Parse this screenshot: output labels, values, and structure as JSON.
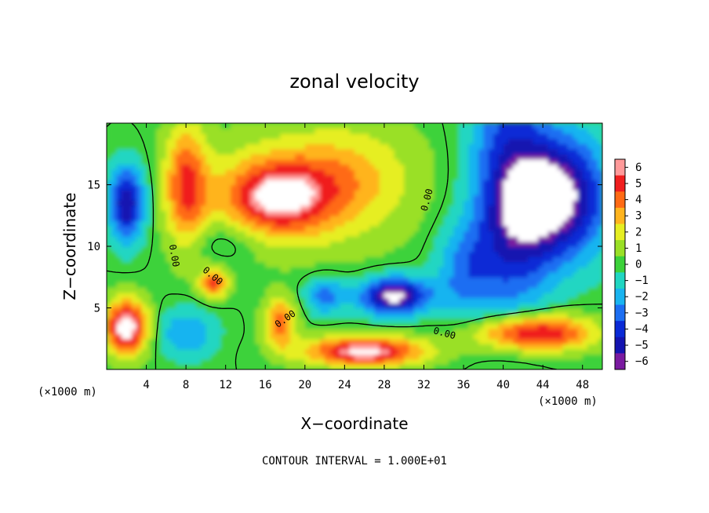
{
  "chart_data": {
    "type": "heatmap",
    "title": "zonal velocity",
    "xlabel": "X−coordinate",
    "ylabel": "Z−coordinate",
    "x_unit_label": "(×1000 m)",
    "z_unit_label": "(×1000 m)",
    "xlim": [
      0,
      50
    ],
    "ylim": [
      0,
      20
    ],
    "x_ticks": [
      4,
      8,
      12,
      16,
      20,
      24,
      28,
      32,
      36,
      40,
      44,
      48
    ],
    "x_tick_labels": [
      "4",
      "8",
      "12",
      "16",
      "20",
      "24",
      "28",
      "32",
      "36",
      "40",
      "44",
      "48"
    ],
    "y_ticks": [
      5,
      10,
      15
    ],
    "y_tick_labels": [
      "5",
      "10",
      "15"
    ],
    "colorbar": {
      "min": -6,
      "max": 6,
      "tick_values": [
        6,
        5,
        4,
        3,
        2,
        1,
        0,
        -1,
        -2,
        -3,
        -4,
        -5,
        -6
      ],
      "tick_labels": [
        "6",
        "5",
        "4",
        "3",
        "2",
        "1",
        "0",
        "−1",
        "−2",
        "−3",
        "−4",
        "−5",
        "−6"
      ]
    },
    "contour_label": "0.00",
    "contour_labels": [
      {
        "text": "0.00",
        "x": 6.5,
        "y": 9.2,
        "angle": 80
      },
      {
        "text": "0.00",
        "x": 10.5,
        "y": 7.4,
        "angle": 40
      },
      {
        "text": "0.00",
        "x": 18.2,
        "y": 3.9,
        "angle": -35
      },
      {
        "text": "0.00",
        "x": 32.6,
        "y": 13.7,
        "angle": -75
      },
      {
        "text": "0.00",
        "x": 34.0,
        "y": 2.7,
        "angle": 15
      }
    ],
    "contour_interval_text": "CONTOUR INTERVAL = 1.000E+01",
    "colors": {
      "m6": "#7a1aa0",
      "m5": "#1414b0",
      "m4": "#0a2ad6",
      "m3": "#1c6ef2",
      "m2": "#19b4f0",
      "m1": "#20d6c2",
      "z0": "#3cd23a",
      "p1": "#9ae026",
      "p2": "#e6ee22",
      "p3": "#ffb41e",
      "p4": "#ff6a14",
      "p5": "#f01e1e",
      "p6": "#ff9a9a",
      "over": "#ffffff"
    },
    "field_features": [
      {
        "sign": "pos",
        "x": 17,
        "y": 14,
        "amp": 5.6,
        "sx": 5.5,
        "sy": 3.2
      },
      {
        "sign": "pos",
        "x": 24,
        "y": 15.5,
        "amp": 2.0,
        "sx": 6,
        "sy": 4
      },
      {
        "sign": "pos",
        "x": 8,
        "y": 15,
        "amp": 4.5,
        "sx": 2.2,
        "sy": 5
      },
      {
        "sign": "pos",
        "x": 10.8,
        "y": 7.0,
        "amp": 4.6,
        "sx": 1.4,
        "sy": 1.2
      },
      {
        "sign": "pos",
        "x": 17.5,
        "y": 3.8,
        "amp": 4.2,
        "sx": 1.6,
        "sy": 2.0
      },
      {
        "sign": "pos",
        "x": 2,
        "y": 3.5,
        "amp": 7,
        "sx": 2.2,
        "sy": 2.2
      },
      {
        "sign": "pos",
        "x": 26,
        "y": 1.5,
        "amp": 6.5,
        "sx": 6,
        "sy": 1.2
      },
      {
        "sign": "pos",
        "x": 43,
        "y": 3.0,
        "amp": 6.2,
        "sx": 6,
        "sy": 1.5
      },
      {
        "sign": "neg",
        "x": 45.5,
        "y": 14,
        "amp": 6.5,
        "sx": 5,
        "sy": 5
      },
      {
        "sign": "neg",
        "x": 2,
        "y": 13.5,
        "amp": 5.5,
        "sx": 1.8,
        "sy": 3
      },
      {
        "sign": "neg",
        "x": 29,
        "y": 6.0,
        "amp": 6.5,
        "sx": 3.5,
        "sy": 1.5
      },
      {
        "sign": "neg",
        "x": 41,
        "y": 12,
        "amp": 3.0,
        "sx": 4,
        "sy": 8
      },
      {
        "sign": "neg",
        "x": 12,
        "y": 10.5,
        "amp": 1.2,
        "sx": 4,
        "sy": 1.6
      },
      {
        "sign": "neg",
        "x": 22,
        "y": 6.0,
        "amp": 3.0,
        "sx": 2,
        "sy": 1.5
      },
      {
        "sign": "neg",
        "x": 8,
        "y": 3.0,
        "amp": 2.5,
        "sx": 3,
        "sy": 2
      },
      {
        "sign": "neg",
        "x": 36,
        "y": 8,
        "amp": 2.5,
        "sx": 3,
        "sy": 4
      }
    ]
  }
}
